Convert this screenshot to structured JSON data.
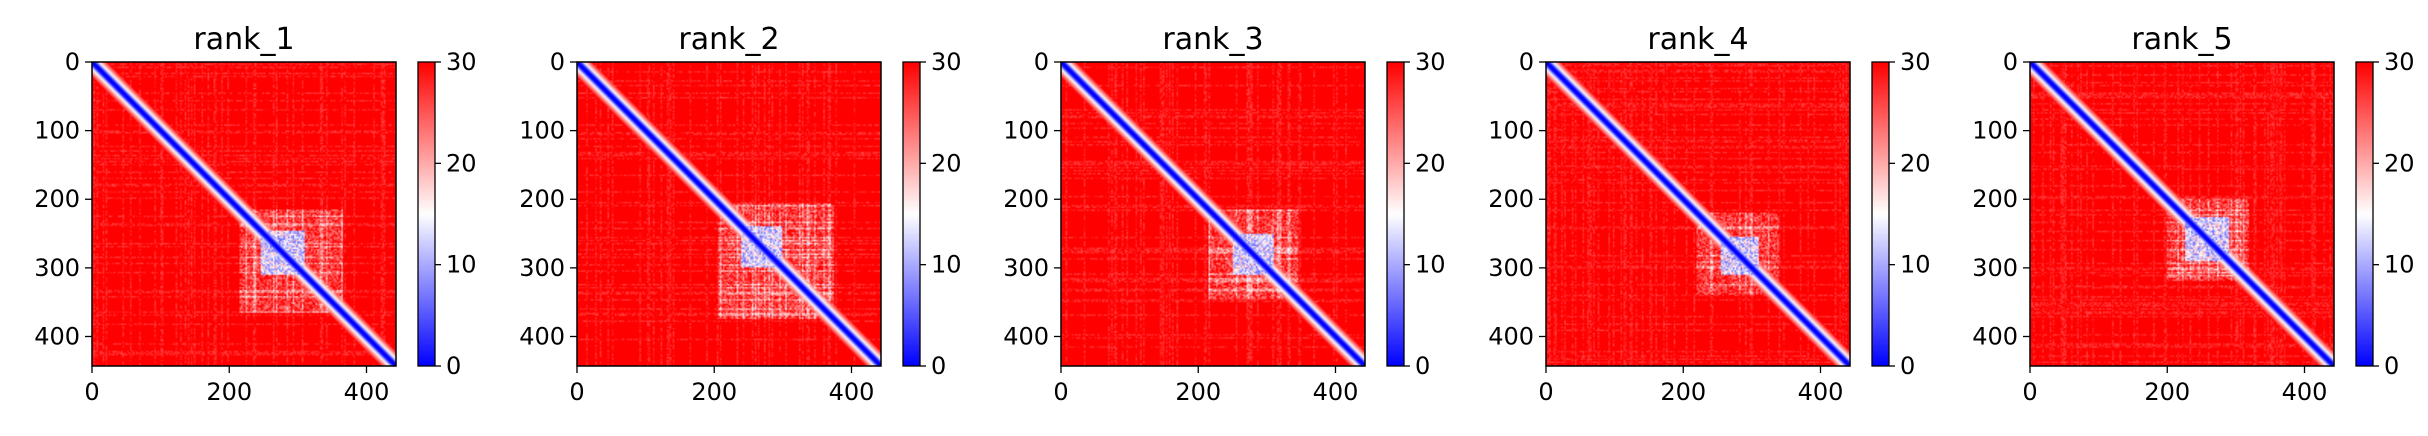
{
  "chart_data": [
    {
      "type": "heatmap",
      "title": "rank_1",
      "x_ticks": [
        0,
        200,
        400
      ],
      "y_ticks": [
        0,
        100,
        200,
        300,
        400
      ],
      "xlim": [
        0,
        443
      ],
      "ylim": [
        443,
        0
      ],
      "colorbar": {
        "ticks": [
          0,
          10,
          20,
          30
        ],
        "vmin": 0,
        "vmax": 30,
        "colors": [
          "#0000ff",
          "#ffffff",
          "#ff0000"
        ]
      },
      "matrix_summary": {
        "n_residues": 443,
        "diagonal_value": 0,
        "background_value": 30,
        "low_block": [
          215,
          365
        ],
        "dense_core": [
          245,
          310
        ]
      }
    },
    {
      "type": "heatmap",
      "title": "rank_2",
      "x_ticks": [
        0,
        200,
        400
      ],
      "y_ticks": [
        0,
        100,
        200,
        300,
        400
      ],
      "xlim": [
        0,
        443
      ],
      "ylim": [
        443,
        0
      ],
      "colorbar": {
        "ticks": [
          0,
          10,
          20,
          30
        ],
        "vmin": 0,
        "vmax": 30,
        "colors": [
          "#0000ff",
          "#ffffff",
          "#ff0000"
        ]
      },
      "matrix_summary": {
        "n_residues": 443,
        "diagonal_value": 0,
        "background_value": 30,
        "low_block": [
          205,
          375
        ],
        "dense_core": [
          240,
          300
        ]
      }
    },
    {
      "type": "heatmap",
      "title": "rank_3",
      "x_ticks": [
        0,
        200,
        400
      ],
      "y_ticks": [
        0,
        100,
        200,
        300,
        400
      ],
      "xlim": [
        0,
        443
      ],
      "ylim": [
        443,
        0
      ],
      "colorbar": {
        "ticks": [
          0,
          10,
          20,
          30
        ],
        "vmin": 0,
        "vmax": 30,
        "colors": [
          "#0000ff",
          "#ffffff",
          "#ff0000"
        ]
      },
      "matrix_summary": {
        "n_residues": 443,
        "diagonal_value": 0,
        "background_value": 30,
        "low_block": [
          215,
          345
        ],
        "dense_core": [
          250,
          310
        ]
      }
    },
    {
      "type": "heatmap",
      "title": "rank_4",
      "x_ticks": [
        0,
        200,
        400
      ],
      "y_ticks": [
        0,
        100,
        200,
        300,
        400
      ],
      "xlim": [
        0,
        443
      ],
      "ylim": [
        443,
        0
      ],
      "colorbar": {
        "ticks": [
          0,
          10,
          20,
          30
        ],
        "vmin": 0,
        "vmax": 30,
        "colors": [
          "#0000ff",
          "#ffffff",
          "#ff0000"
        ]
      },
      "matrix_summary": {
        "n_residues": 443,
        "diagonal_value": 0,
        "background_value": 30,
        "low_block": [
          220,
          340
        ],
        "dense_core": [
          255,
          310
        ]
      }
    },
    {
      "type": "heatmap",
      "title": "rank_5",
      "x_ticks": [
        0,
        200,
        400
      ],
      "y_ticks": [
        0,
        100,
        200,
        300,
        400
      ],
      "xlim": [
        0,
        443
      ],
      "ylim": [
        443,
        0
      ],
      "colorbar": {
        "ticks": [
          0,
          10,
          20,
          30
        ],
        "vmin": 0,
        "vmax": 30,
        "colors": [
          "#0000ff",
          "#ffffff",
          "#ff0000"
        ]
      },
      "matrix_summary": {
        "n_residues": 443,
        "diagonal_value": 0,
        "background_value": 30,
        "low_block": [
          200,
          320
        ],
        "dense_core": [
          225,
          290
        ]
      }
    }
  ]
}
